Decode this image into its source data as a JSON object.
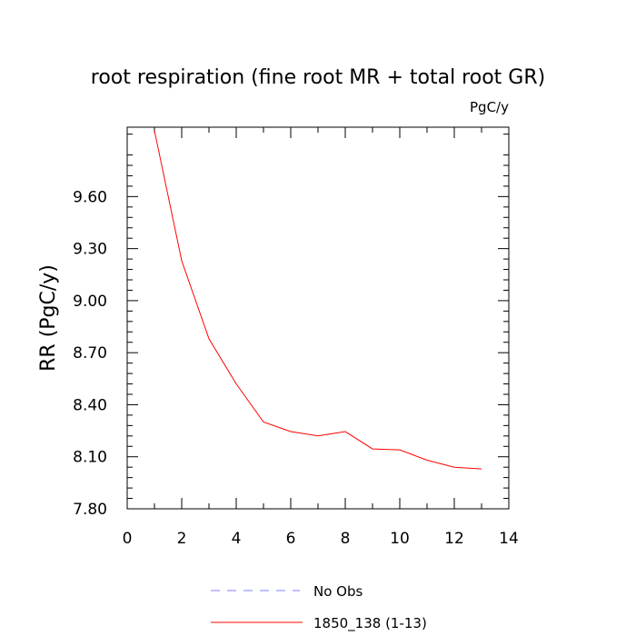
{
  "chart_data": {
    "type": "line",
    "title": "root respiration (fine root MR + total root GR)",
    "units_label": "PgC/y",
    "ylabel": "RR  (PgC/y)",
    "xlabel": "",
    "xlim": [
      0,
      14
    ],
    "ylim": [
      7.8,
      10.0
    ],
    "x_ticks": [
      0,
      2,
      4,
      6,
      8,
      10,
      12,
      14
    ],
    "x_tick_labels": [
      "0",
      "2",
      "4",
      "6",
      "8",
      "10",
      "12",
      "14"
    ],
    "y_ticks": [
      7.8,
      8.1,
      8.4,
      8.7,
      9.0,
      9.3,
      9.6
    ],
    "y_tick_labels": [
      "7.80",
      "8.10",
      "8.40",
      "8.70",
      "9.00",
      "9.30",
      "9.60"
    ],
    "grid": false,
    "legend_position": "bottom",
    "series": [
      {
        "name": "No Obs",
        "color": "#8080ff",
        "dash": "dashed",
        "x": [],
        "values": []
      },
      {
        "name": "1850_138 (1-13)",
        "color": "#ff0000",
        "dash": "solid",
        "x": [
          1,
          2,
          3,
          4,
          5,
          6,
          7,
          8,
          9,
          10,
          11,
          12,
          13
        ],
        "values": [
          9.98,
          9.23,
          8.78,
          8.52,
          8.3,
          8.245,
          8.22,
          8.245,
          8.145,
          8.14,
          8.08,
          8.04,
          8.03
        ]
      }
    ]
  }
}
